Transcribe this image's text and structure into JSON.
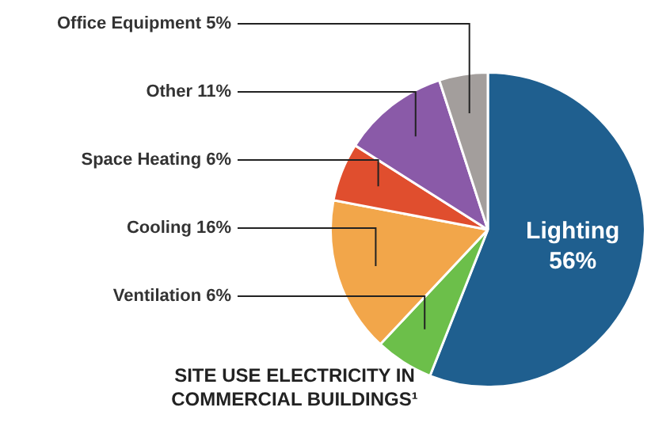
{
  "chart_data": {
    "type": "pie",
    "title": "SITE USE ELECTRICITY IN COMMERCIAL BUILDINGS¹",
    "categories": [
      "Lighting",
      "Ventilation",
      "Cooling",
      "Space Heating",
      "Other",
      "Office Equipment"
    ],
    "values": [
      56,
      6,
      16,
      6,
      11,
      5
    ],
    "value_labels": [
      "56%",
      "6%",
      "16%",
      "6%",
      "11%",
      "5%"
    ],
    "colors": [
      "#1f5f8f",
      "#6cbf4a",
      "#f2a64a",
      "#e04e2e",
      "#8a5aa8",
      "#a39e9c"
    ]
  }
}
